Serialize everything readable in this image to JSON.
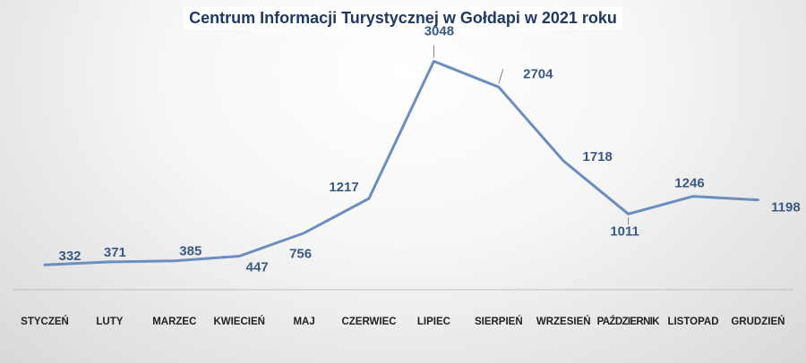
{
  "chart_data": {
    "type": "line",
    "title": "Centrum Informacji Turystycznej w Gołdapi w 2021 roku",
    "xlabel": "",
    "ylabel": "",
    "categories": [
      "STYCZEŃ",
      "LUTY",
      "MARZEC",
      "KWIECIEŃ",
      "MAJ",
      "CZERWIEC",
      "LIPIEC",
      "SIERPIEŃ",
      "WRZESIEŃ",
      "PAŹDZIERNIK",
      "LISTOPAD",
      "GRUDZIEŃ"
    ],
    "series": [
      {
        "values": [
          332,
          371,
          385,
          447,
          756,
          1217,
          3048,
          2704,
          1718,
          1011,
          1246,
          1198
        ]
      }
    ],
    "ylim": [
      0,
      3400
    ],
    "grid": false,
    "legend": "none",
    "line_color": "#6c8ebf",
    "label_color": "#3a5a85"
  }
}
